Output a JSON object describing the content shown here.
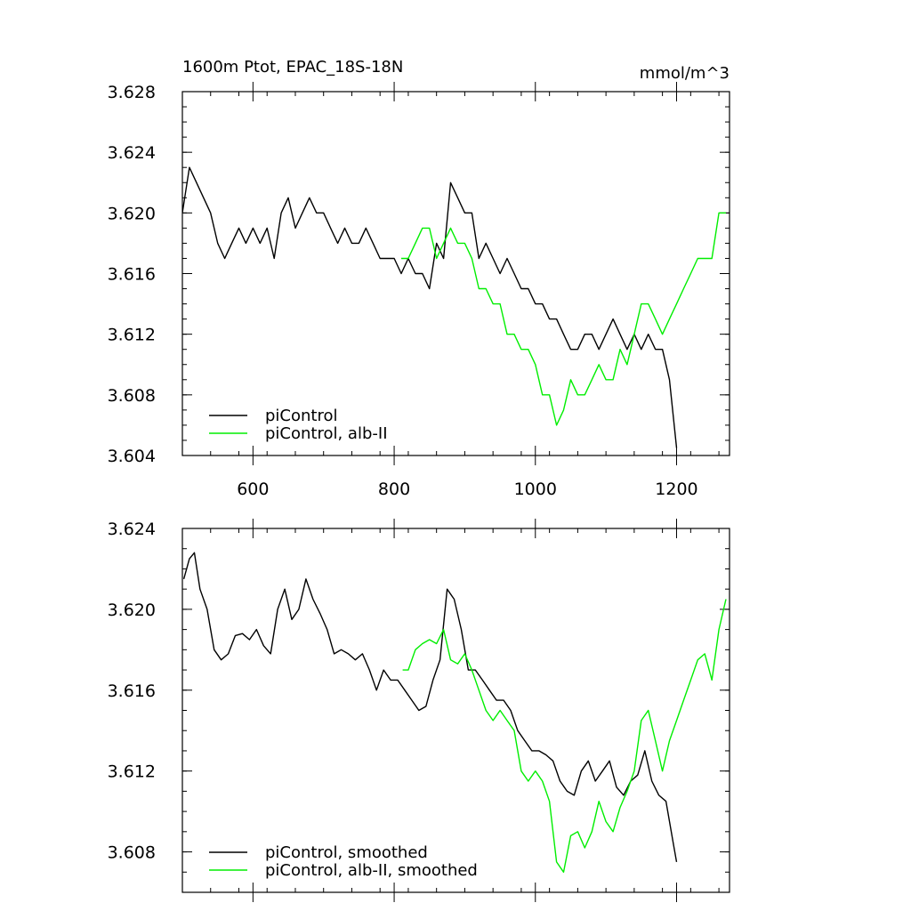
{
  "chart_data": [
    {
      "type": "line",
      "title": "1600m Ptot, EPAC_18S-18N",
      "units": "mmol/m^3",
      "xlim": [
        500,
        1275
      ],
      "ylim": [
        3.604,
        3.628
      ],
      "xticks": [
        600,
        800,
        1000,
        1200
      ],
      "xtick_labels": [
        "600",
        "800",
        "1000",
        "1200"
      ],
      "yticks": [
        3.604,
        3.608,
        3.612,
        3.616,
        3.62,
        3.624,
        3.628
      ],
      "ytick_labels": [
        "3.604",
        "3.608",
        "3.612",
        "3.616",
        "3.620",
        "3.624",
        "3.628"
      ],
      "legend_position": "bottom-left",
      "series": [
        {
          "name": "piControl",
          "color": "#000000",
          "x": [
            500,
            510,
            520,
            530,
            540,
            550,
            560,
            570,
            580,
            590,
            600,
            610,
            620,
            630,
            640,
            650,
            660,
            670,
            680,
            690,
            700,
            710,
            720,
            730,
            740,
            750,
            760,
            770,
            780,
            790,
            800,
            810,
            820,
            830,
            840,
            850,
            860,
            870,
            880,
            890,
            900,
            910,
            920,
            930,
            940,
            950,
            960,
            970,
            980,
            990,
            1000,
            1010,
            1020,
            1030,
            1040,
            1050,
            1060,
            1070,
            1080,
            1090,
            1100,
            1110,
            1120,
            1130,
            1140,
            1150,
            1160,
            1170,
            1180,
            1190,
            1200
          ],
          "y": [
            3.62,
            3.623,
            3.622,
            3.621,
            3.62,
            3.618,
            3.617,
            3.618,
            3.619,
            3.618,
            3.619,
            3.618,
            3.619,
            3.617,
            3.62,
            3.621,
            3.619,
            3.62,
            3.621,
            3.62,
            3.62,
            3.619,
            3.618,
            3.619,
            3.618,
            3.618,
            3.619,
            3.618,
            3.617,
            3.617,
            3.617,
            3.616,
            3.617,
            3.616,
            3.616,
            3.615,
            3.618,
            3.617,
            3.622,
            3.621,
            3.62,
            3.62,
            3.617,
            3.618,
            3.617,
            3.616,
            3.617,
            3.616,
            3.615,
            3.615,
            3.614,
            3.614,
            3.613,
            3.613,
            3.612,
            3.611,
            3.611,
            3.612,
            3.612,
            3.611,
            3.612,
            3.613,
            3.612,
            3.611,
            3.612,
            3.611,
            3.612,
            3.611,
            3.611,
            3.609,
            3.6045
          ]
        },
        {
          "name": "piControl, alb-II",
          "color": "#00ee00",
          "x": [
            810,
            820,
            830,
            840,
            850,
            860,
            870,
            880,
            890,
            900,
            910,
            920,
            930,
            940,
            950,
            960,
            970,
            980,
            990,
            1000,
            1010,
            1020,
            1030,
            1040,
            1050,
            1060,
            1070,
            1080,
            1090,
            1100,
            1110,
            1120,
            1130,
            1140,
            1150,
            1160,
            1170,
            1180,
            1190,
            1200,
            1210,
            1220,
            1230,
            1240,
            1250,
            1260,
            1270
          ],
          "y": [
            3.617,
            3.617,
            3.618,
            3.619,
            3.619,
            3.617,
            3.618,
            3.619,
            3.618,
            3.618,
            3.617,
            3.615,
            3.615,
            3.614,
            3.614,
            3.612,
            3.612,
            3.611,
            3.611,
            3.61,
            3.608,
            3.608,
            3.606,
            3.607,
            3.609,
            3.608,
            3.608,
            3.609,
            3.61,
            3.609,
            3.609,
            3.611,
            3.61,
            3.612,
            3.614,
            3.614,
            3.613,
            3.612,
            3.613,
            3.614,
            3.615,
            3.616,
            3.617,
            3.617,
            3.617,
            3.62,
            3.62
          ]
        }
      ]
    },
    {
      "type": "line",
      "title": "",
      "units": "",
      "xlim": [
        500,
        1275
      ],
      "ylim": [
        3.606,
        3.624
      ],
      "xticks": [
        600,
        800,
        1000,
        1200
      ],
      "xtick_labels": [
        "",
        "",
        "",
        ""
      ],
      "yticks": [
        3.608,
        3.612,
        3.616,
        3.62,
        3.624
      ],
      "ytick_labels": [
        "3.608",
        "3.612",
        "3.616",
        "3.620",
        "3.624"
      ],
      "legend_position": "bottom-left",
      "series": [
        {
          "name": "piControl, smoothed",
          "color": "#000000",
          "x": [
            502,
            510,
            517,
            525,
            535,
            545,
            555,
            565,
            575,
            585,
            595,
            605,
            615,
            625,
            635,
            645,
            655,
            665,
            675,
            685,
            695,
            705,
            715,
            725,
            735,
            745,
            755,
            765,
            775,
            785,
            795,
            805,
            815,
            825,
            835,
            845,
            855,
            865,
            875,
            885,
            895,
            905,
            915,
            925,
            935,
            945,
            955,
            965,
            975,
            985,
            995,
            1005,
            1015,
            1025,
            1035,
            1045,
            1055,
            1065,
            1075,
            1085,
            1095,
            1105,
            1115,
            1125,
            1135,
            1145,
            1155,
            1165,
            1175,
            1185,
            1195,
            1200
          ],
          "y": [
            3.6215,
            3.6225,
            3.6228,
            3.621,
            3.62,
            3.618,
            3.6175,
            3.6178,
            3.6187,
            3.6188,
            3.6185,
            3.619,
            3.6182,
            3.6178,
            3.62,
            3.621,
            3.6195,
            3.62,
            3.6215,
            3.6205,
            3.6198,
            3.619,
            3.6178,
            3.618,
            3.6178,
            3.6175,
            3.6178,
            3.617,
            3.616,
            3.617,
            3.6165,
            3.6165,
            3.616,
            3.6155,
            3.615,
            3.6152,
            3.6165,
            3.6175,
            3.621,
            3.6205,
            3.619,
            3.617,
            3.617,
            3.6165,
            3.616,
            3.6155,
            3.6155,
            3.615,
            3.614,
            3.6135,
            3.613,
            3.613,
            3.6128,
            3.6125,
            3.6115,
            3.611,
            3.6108,
            3.612,
            3.6125,
            3.6115,
            3.612,
            3.6125,
            3.6112,
            3.6108,
            3.6115,
            3.6118,
            3.613,
            3.6115,
            3.6108,
            3.6105,
            3.6085,
            3.6075
          ]
        },
        {
          "name": "piControl, alb-II, smoothed",
          "color": "#00ee00",
          "x": [
            812,
            820,
            830,
            840,
            850,
            860,
            870,
            880,
            890,
            900,
            910,
            920,
            930,
            940,
            950,
            960,
            970,
            980,
            990,
            1000,
            1010,
            1020,
            1030,
            1040,
            1050,
            1060,
            1070,
            1080,
            1090,
            1100,
            1110,
            1120,
            1130,
            1140,
            1150,
            1160,
            1170,
            1180,
            1190,
            1200,
            1210,
            1220,
            1230,
            1240,
            1250,
            1260,
            1270
          ],
          "y": [
            3.617,
            3.617,
            3.618,
            3.6183,
            3.6185,
            3.6183,
            3.619,
            3.6175,
            3.6173,
            3.6178,
            3.617,
            3.616,
            3.615,
            3.6145,
            3.615,
            3.6145,
            3.614,
            3.612,
            3.6115,
            3.612,
            3.6115,
            3.6105,
            3.6075,
            3.607,
            3.6088,
            3.609,
            3.6082,
            3.609,
            3.6105,
            3.6095,
            3.609,
            3.6102,
            3.611,
            3.612,
            3.6145,
            3.615,
            3.6135,
            3.612,
            3.6135,
            3.6145,
            3.6155,
            3.6165,
            3.6175,
            3.6178,
            3.6165,
            3.619,
            3.6205
          ]
        }
      ]
    }
  ]
}
